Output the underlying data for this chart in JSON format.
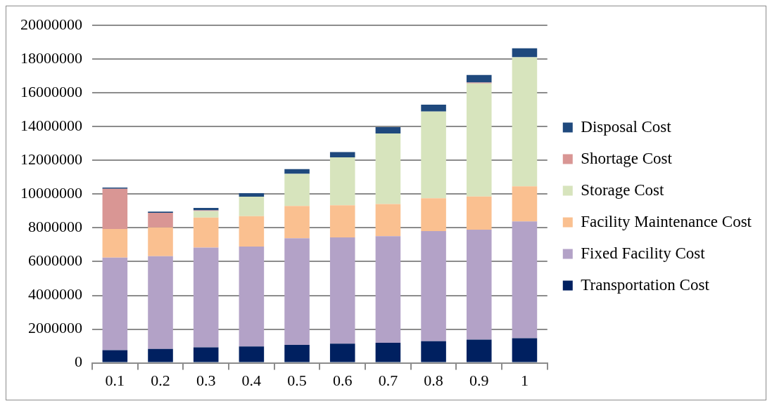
{
  "chart_data": {
    "type": "bar",
    "stacked": true,
    "categories": [
      "0.1",
      "0.2",
      "0.3",
      "0.4",
      "0.5",
      "0.6",
      "0.7",
      "0.8",
      "0.9",
      "1"
    ],
    "series": [
      {
        "name": "Transportation Cost",
        "color": "#002060",
        "values": [
          750000,
          830000,
          920000,
          970000,
          1070000,
          1140000,
          1190000,
          1280000,
          1380000,
          1460000
        ]
      },
      {
        "name": "Fixed Facility Cost",
        "color": "#b3a2c7",
        "values": [
          5490000,
          5490000,
          5910000,
          5920000,
          6310000,
          6300000,
          6320000,
          6530000,
          6510000,
          6920000
        ]
      },
      {
        "name": "Facility Maintenance Cost",
        "color": "#fac090",
        "values": [
          1690000,
          1710000,
          1780000,
          1800000,
          1920000,
          1900000,
          1900000,
          1950000,
          1970000,
          2080000
        ]
      },
      {
        "name": "Storage Cost",
        "color": "#d7e4bd",
        "values": [
          0,
          0,
          390000,
          1160000,
          1900000,
          2840000,
          4190000,
          5140000,
          6700000,
          7650000
        ]
      },
      {
        "name": "Shortage Cost",
        "color": "#d99694",
        "values": [
          2390000,
          860000,
          40000,
          0,
          0,
          0,
          0,
          0,
          60000,
          0
        ]
      },
      {
        "name": "Disposal Cost",
        "color": "#1f497d",
        "values": [
          70000,
          80000,
          140000,
          210000,
          280000,
          310000,
          370000,
          400000,
          440000,
          540000
        ]
      }
    ],
    "ylim": [
      0,
      20000000
    ],
    "yticks": [
      0,
      2000000,
      4000000,
      6000000,
      8000000,
      10000000,
      12000000,
      14000000,
      16000000,
      18000000,
      20000000
    ],
    "grid": "y",
    "legend": "right"
  }
}
